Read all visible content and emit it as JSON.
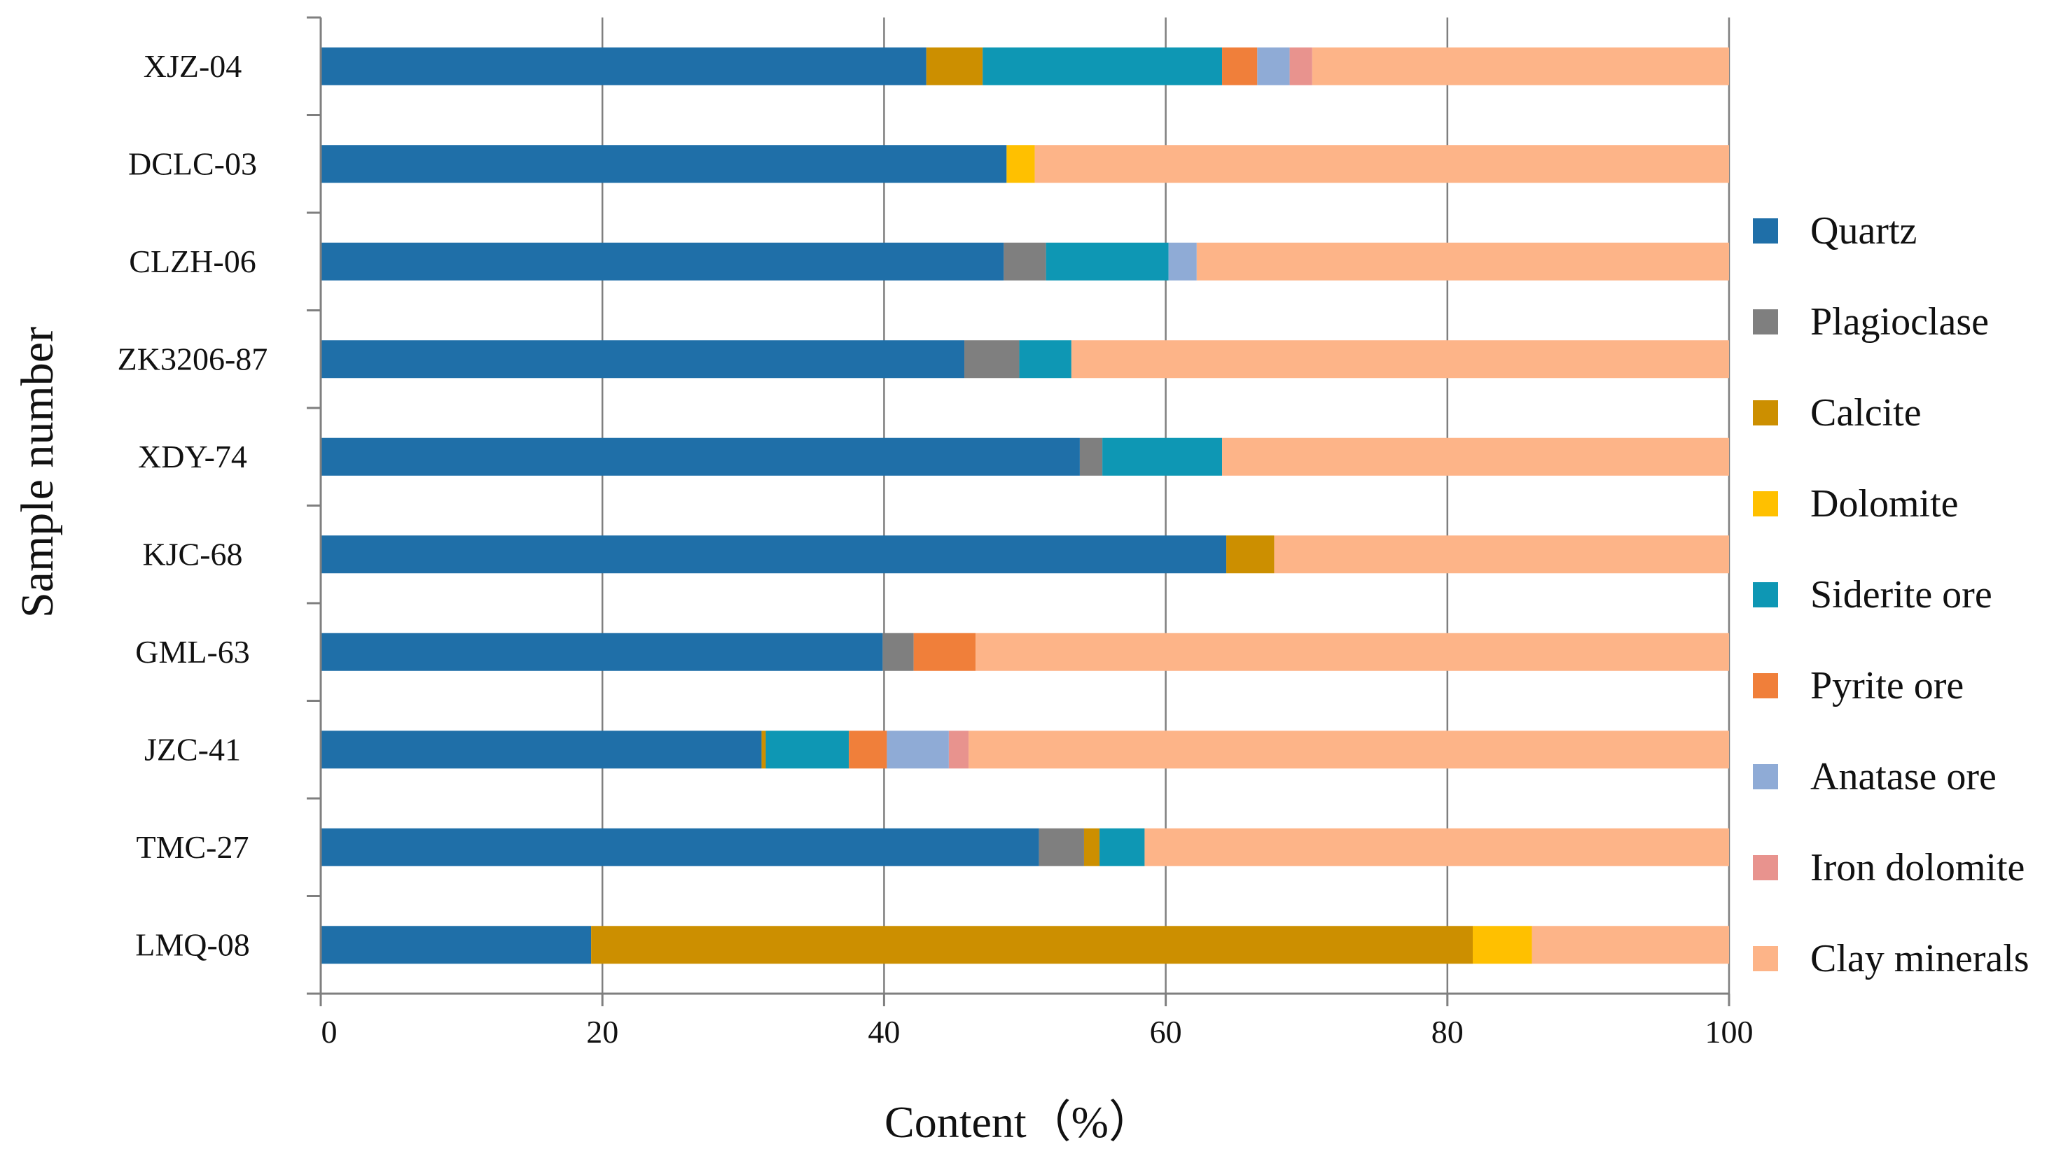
{
  "chart_data": {
    "type": "bar",
    "orientation": "horizontal",
    "stacked": true,
    "xlabel": "Content（%）",
    "ylabel": "Sample number",
    "xlim": [
      0,
      100
    ],
    "x_ticks": [
      "0",
      "20",
      "40",
      "60",
      "80",
      "100"
    ],
    "grid": "vertical",
    "legend_position": "right",
    "categories": [
      "XJZ-04",
      "DCLC-03",
      "CLZH-06",
      "ZK3206-87",
      "XDY-74",
      "KJC-68",
      "GML-63",
      "JZC-41",
      "TMC-27",
      "LMQ-08"
    ],
    "series": [
      {
        "name": "Quartz",
        "color": "#1f6fa8",
        "values": [
          43,
          48.7,
          48.5,
          45.7,
          53.9,
          64.3,
          39.9,
          31.3,
          51,
          19.2
        ]
      },
      {
        "name": "Plagioclase",
        "color": "#7f7f7f",
        "values": [
          0,
          0,
          3,
          3.9,
          1.6,
          0,
          2.2,
          0,
          3.2,
          0
        ]
      },
      {
        "name": "Calcite",
        "color": "#cc8f00",
        "values": [
          4,
          0,
          0,
          0,
          0,
          3.4,
          0,
          0.3,
          1.1,
          62.6
        ]
      },
      {
        "name": "Dolomite",
        "color": "#ffc000",
        "values": [
          0,
          2,
          0,
          0,
          0,
          0,
          0,
          0,
          0,
          4.2
        ]
      },
      {
        "name": "Siderite ore",
        "color": "#0e97b4",
        "values": [
          17,
          0,
          8.7,
          3.7,
          8.5,
          0,
          0,
          5.9,
          3.2,
          0
        ]
      },
      {
        "name": "Pyrite ore",
        "color": "#f07f3a",
        "values": [
          2.5,
          0,
          0,
          0,
          0,
          0,
          4.4,
          2.7,
          0,
          0
        ]
      },
      {
        "name": "Anatase ore",
        "color": "#8fabd6",
        "values": [
          2.3,
          0,
          2,
          0,
          0,
          0,
          0,
          4.4,
          0,
          0
        ]
      },
      {
        "name": "Iron dolomite",
        "color": "#e8938e",
        "values": [
          1.6,
          0,
          0,
          0,
          0,
          0,
          0,
          1.4,
          0,
          0
        ]
      },
      {
        "name": "Clay minerals",
        "color": "#fdb488",
        "values": [
          29.6,
          49.3,
          37.8,
          46.7,
          36,
          32.3,
          53.5,
          54,
          41.5,
          14
        ]
      }
    ]
  }
}
